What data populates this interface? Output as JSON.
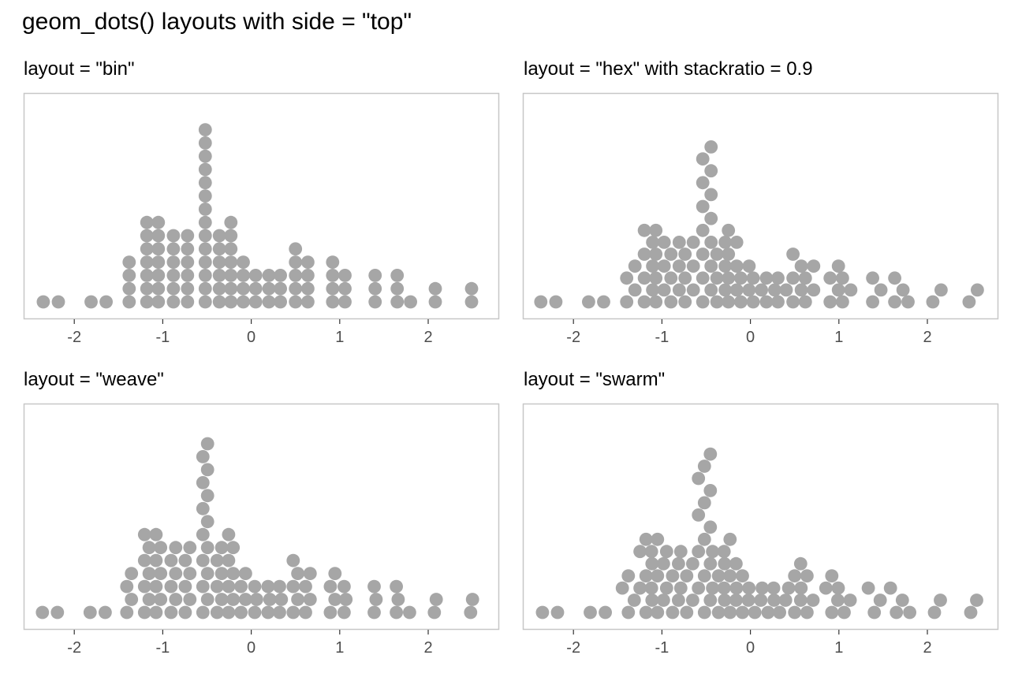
{
  "title": "geom_dots() layouts with side = \"top\"",
  "style": {
    "dot_color": "#a6a6a6",
    "panel_border_color": "#c7c7c7",
    "tick_text_color": "#4d4d4d"
  },
  "chart_data": [
    {
      "type": "scatter",
      "subtitle": "layout = \"bin\"",
      "layout": "bin",
      "xlim": [
        -2.35,
        2.55
      ],
      "x_ticks": [
        -2,
        -1,
        0,
        1,
        2
      ],
      "x_tick_labels": [
        "-2",
        "-1",
        "0",
        "1",
        "2"
      ],
      "grid": false,
      "stacks": [
        {
          "x": -2.35,
          "count": 1
        },
        {
          "x": -2.18,
          "count": 1
        },
        {
          "x": -1.81,
          "count": 1
        },
        {
          "x": -1.64,
          "count": 1
        },
        {
          "x": -1.38,
          "count": 4
        },
        {
          "x": -1.18,
          "count": 7
        },
        {
          "x": -1.05,
          "count": 7
        },
        {
          "x": -0.88,
          "count": 6
        },
        {
          "x": -0.72,
          "count": 6
        },
        {
          "x": -0.52,
          "count": 14
        },
        {
          "x": -0.36,
          "count": 6
        },
        {
          "x": -0.23,
          "count": 7
        },
        {
          "x": -0.09,
          "count": 4
        },
        {
          "x": 0.05,
          "count": 3
        },
        {
          "x": 0.2,
          "count": 3
        },
        {
          "x": 0.33,
          "count": 3
        },
        {
          "x": 0.5,
          "count": 5
        },
        {
          "x": 0.64,
          "count": 4
        },
        {
          "x": 0.92,
          "count": 4
        },
        {
          "x": 1.06,
          "count": 3
        },
        {
          "x": 1.4,
          "count": 3
        },
        {
          "x": 1.65,
          "count": 3
        },
        {
          "x": 1.8,
          "count": 1
        },
        {
          "x": 2.08,
          "count": 2
        },
        {
          "x": 2.49,
          "count": 2
        }
      ]
    },
    {
      "type": "scatter",
      "subtitle": "layout = \"hex\" with stackratio = 0.9",
      "layout": "hex",
      "stackratio": 0.9,
      "xlim": [
        -2.35,
        2.55
      ],
      "x_ticks": [
        -2,
        -1,
        0,
        1,
        2
      ],
      "x_tick_labels": [
        "-2",
        "-1",
        "0",
        "1",
        "2"
      ],
      "grid": false,
      "stacks": [
        {
          "x": -2.35,
          "count": 1
        },
        {
          "x": -2.18,
          "count": 1
        },
        {
          "x": -1.81,
          "count": 1
        },
        {
          "x": -1.64,
          "count": 1
        },
        {
          "x": -1.38,
          "count": 4
        },
        {
          "x": -1.18,
          "count": 7
        },
        {
          "x": -1.05,
          "count": 7
        },
        {
          "x": -0.88,
          "count": 6
        },
        {
          "x": -0.72,
          "count": 6
        },
        {
          "x": -0.52,
          "count": 14
        },
        {
          "x": -0.36,
          "count": 6
        },
        {
          "x": -0.23,
          "count": 7
        },
        {
          "x": -0.09,
          "count": 4
        },
        {
          "x": 0.05,
          "count": 3
        },
        {
          "x": 0.2,
          "count": 3
        },
        {
          "x": 0.33,
          "count": 3
        },
        {
          "x": 0.5,
          "count": 5
        },
        {
          "x": 0.64,
          "count": 4
        },
        {
          "x": 0.92,
          "count": 4
        },
        {
          "x": 1.06,
          "count": 3
        },
        {
          "x": 1.4,
          "count": 3
        },
        {
          "x": 1.65,
          "count": 3
        },
        {
          "x": 1.8,
          "count": 1
        },
        {
          "x": 2.08,
          "count": 2
        },
        {
          "x": 2.49,
          "count": 2
        }
      ]
    },
    {
      "type": "scatter",
      "subtitle": "layout = \"weave\"",
      "layout": "weave",
      "xlim": [
        -2.35,
        2.55
      ],
      "x_ticks": [
        -2,
        -1,
        0,
        1,
        2
      ],
      "x_tick_labels": [
        "-2",
        "-1",
        "0",
        "1",
        "2"
      ],
      "grid": false,
      "stacks": [
        {
          "x": -2.35,
          "count": 1
        },
        {
          "x": -2.18,
          "count": 1
        },
        {
          "x": -1.81,
          "count": 1
        },
        {
          "x": -1.64,
          "count": 1
        },
        {
          "x": -1.38,
          "count": 4
        },
        {
          "x": -1.18,
          "count": 7
        },
        {
          "x": -1.05,
          "count": 7
        },
        {
          "x": -0.88,
          "count": 6
        },
        {
          "x": -0.72,
          "count": 6
        },
        {
          "x": -0.52,
          "count": 14
        },
        {
          "x": -0.36,
          "count": 6
        },
        {
          "x": -0.23,
          "count": 7
        },
        {
          "x": -0.09,
          "count": 4
        },
        {
          "x": 0.05,
          "count": 3
        },
        {
          "x": 0.2,
          "count": 3
        },
        {
          "x": 0.33,
          "count": 3
        },
        {
          "x": 0.5,
          "count": 5
        },
        {
          "x": 0.64,
          "count": 4
        },
        {
          "x": 0.92,
          "count": 4
        },
        {
          "x": 1.06,
          "count": 3
        },
        {
          "x": 1.4,
          "count": 3
        },
        {
          "x": 1.65,
          "count": 3
        },
        {
          "x": 1.8,
          "count": 1
        },
        {
          "x": 2.08,
          "count": 2
        },
        {
          "x": 2.49,
          "count": 2
        }
      ]
    },
    {
      "type": "scatter",
      "subtitle": "layout = \"swarm\"",
      "layout": "swarm",
      "xlim": [
        -2.35,
        2.55
      ],
      "x_ticks": [
        -2,
        -1,
        0,
        1,
        2
      ],
      "x_tick_labels": [
        "-2",
        "-1",
        "0",
        "1",
        "2"
      ],
      "grid": false,
      "stacks": [
        {
          "x": -2.35,
          "count": 1
        },
        {
          "x": -2.18,
          "count": 1
        },
        {
          "x": -1.81,
          "count": 1
        },
        {
          "x": -1.64,
          "count": 1
        },
        {
          "x": -1.38,
          "count": 4
        },
        {
          "x": -1.18,
          "count": 7
        },
        {
          "x": -1.05,
          "count": 7
        },
        {
          "x": -0.88,
          "count": 6
        },
        {
          "x": -0.72,
          "count": 6
        },
        {
          "x": -0.52,
          "count": 14
        },
        {
          "x": -0.36,
          "count": 6
        },
        {
          "x": -0.23,
          "count": 7
        },
        {
          "x": -0.09,
          "count": 4
        },
        {
          "x": 0.05,
          "count": 3
        },
        {
          "x": 0.2,
          "count": 3
        },
        {
          "x": 0.33,
          "count": 3
        },
        {
          "x": 0.5,
          "count": 5
        },
        {
          "x": 0.64,
          "count": 4
        },
        {
          "x": 0.92,
          "count": 4
        },
        {
          "x": 1.06,
          "count": 3
        },
        {
          "x": 1.4,
          "count": 3
        },
        {
          "x": 1.65,
          "count": 3
        },
        {
          "x": 1.8,
          "count": 1
        },
        {
          "x": 2.08,
          "count": 2
        },
        {
          "x": 2.49,
          "count": 2
        }
      ]
    }
  ]
}
